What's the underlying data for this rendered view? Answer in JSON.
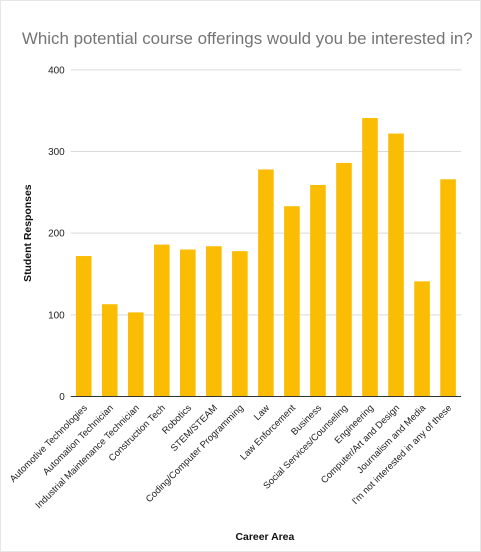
{
  "chart_data": {
    "type": "bar",
    "title": "Which potential course offerings would you be interested in?",
    "xlabel": "Career Area",
    "ylabel": "Student Responses",
    "ylim": [
      0,
      400
    ],
    "yticks": [
      0,
      100,
      200,
      300,
      400
    ],
    "grid": true,
    "bar_color": "#FBBC04",
    "categories": [
      "Automotive Technologies",
      "Automation Technician",
      "Industrial Maintenance Technician",
      "Construction Tech",
      "Robotics",
      "STEM/STEAM",
      "Coding/Computer Programming",
      "Law",
      "Law Enforcement",
      "Business",
      "Social Services/Counseling",
      "Engineering",
      "Computer/Art and Design",
      "Journalism and Media",
      "I'm not interested in any of these"
    ],
    "values": [
      172,
      113,
      103,
      186,
      180,
      184,
      178,
      278,
      233,
      259,
      286,
      341,
      322,
      141,
      266
    ]
  }
}
